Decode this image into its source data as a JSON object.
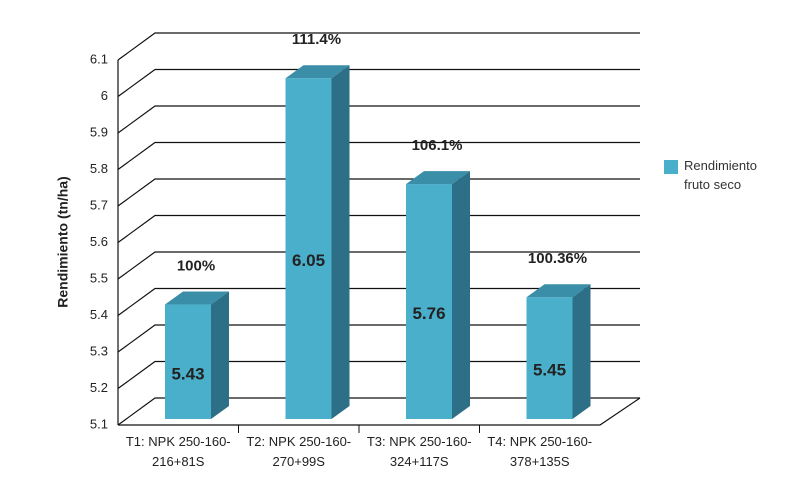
{
  "chart_data": {
    "type": "bar3d",
    "y_label": "Rendimiento (tn/ha)",
    "categories": [
      "T1: NPK 250-160-216+81S",
      "T2: NPK 250-160-270+99S",
      "T3: NPK 250-160-324+117S",
      "T4: NPK 250-160-378+135S"
    ],
    "series": [
      {
        "name": "Rendimiento fruto seco",
        "color": "#4aafcb",
        "values": [
          5.43,
          6.05,
          5.76,
          5.45
        ]
      }
    ],
    "annotations": [
      "100%",
      "111.4%",
      "106.1%",
      "100.36%"
    ],
    "ylim": [
      5.1,
      6.1
    ],
    "yticks": [
      5.1,
      5.2,
      5.3,
      5.4,
      5.5,
      5.6,
      5.7,
      5.8,
      5.9,
      6,
      6.1
    ],
    "grid": true,
    "legend": "right"
  }
}
